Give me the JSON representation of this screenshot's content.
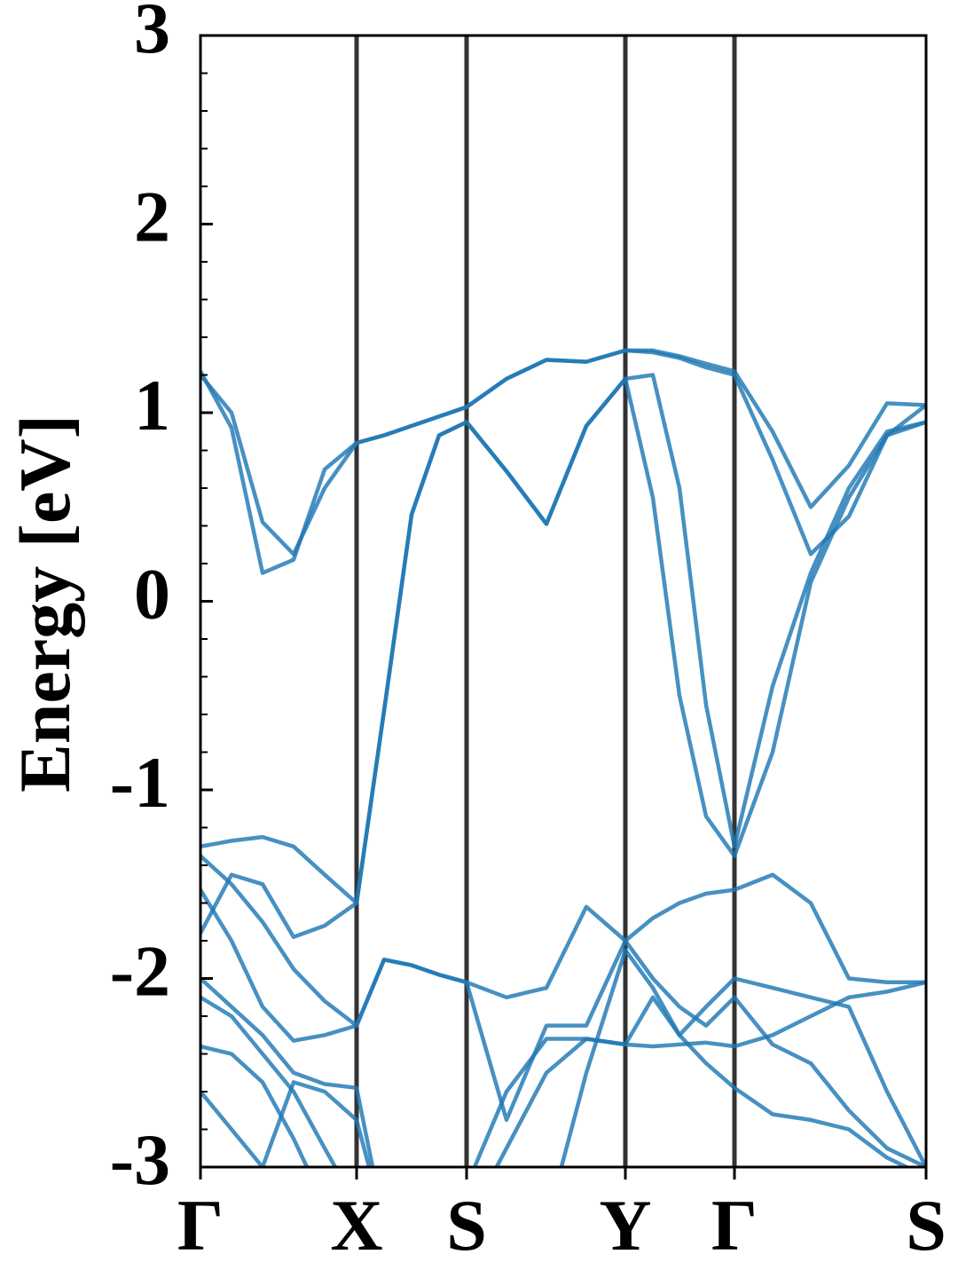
{
  "chart_data": {
    "type": "line",
    "ylabel": "Energy [eV]",
    "x": [
      0,
      0.35,
      0.7,
      1.05,
      1.4,
      1.76,
      2.07,
      2.38,
      2.69,
      3.0,
      3.45,
      3.9,
      4.35,
      4.79,
      5.1,
      5.4,
      5.7,
      6.02,
      6.45,
      6.88,
      7.31,
      7.74,
      8.18
    ],
    "xlim": [
      0,
      8.18
    ],
    "xticks": [
      {
        "value": 0,
        "label": "Γ"
      },
      {
        "value": 1.76,
        "label": "X"
      },
      {
        "value": 3.0,
        "label": "S"
      },
      {
        "value": 4.79,
        "label": "Y"
      },
      {
        "value": 6.02,
        "label": "Γ"
      },
      {
        "value": 8.18,
        "label": "S"
      }
    ],
    "ylim": [
      -3,
      3
    ],
    "yticks": [
      -3,
      -2,
      -1,
      0,
      1,
      2,
      3
    ],
    "yminorticks": [
      -2.8,
      -2.6,
      -2.4,
      -2.2,
      -1.8,
      -1.6,
      -1.4,
      -1.2,
      -0.8,
      -0.6,
      -0.4,
      -0.2,
      0.2,
      0.4,
      0.6,
      0.8,
      1.2,
      1.4,
      1.6,
      1.8,
      2.2,
      2.4,
      2.6,
      2.8
    ],
    "kpoint_lines": true,
    "kpoint_line_color": "#333333",
    "series": [
      {
        "color": "#1f77b4",
        "values": [
          1.22,
          0.92,
          0.15,
          0.22,
          0.7,
          0.84,
          0.88,
          0.93,
          0.98,
          1.03,
          1.18,
          1.28,
          1.27,
          1.33,
          1.33,
          1.3,
          1.26,
          1.22,
          0.9,
          0.5,
          0.72,
          1.05,
          1.04
        ]
      },
      {
        "color": "#1f77b4",
        "values": [
          1.2,
          1.0,
          0.42,
          0.25,
          0.6,
          0.84,
          0.88,
          0.93,
          0.98,
          1.03,
          1.18,
          1.28,
          1.27,
          1.33,
          1.32,
          1.29,
          1.24,
          1.2,
          0.75,
          0.25,
          0.45,
          0.88,
          1.04
        ]
      },
      {
        "color": "#1f77b4",
        "values": [
          -1.3,
          -1.27,
          -1.25,
          -1.3,
          -1.45,
          -1.6,
          -0.58,
          0.46,
          0.88,
          0.95,
          0.69,
          0.41,
          0.93,
          1.18,
          0.55,
          -0.5,
          -1.14,
          -1.35,
          -0.8,
          0.1,
          0.55,
          0.88,
          0.95
        ]
      },
      {
        "color": "#1f77b4",
        "values": [
          -1.76,
          -1.45,
          -1.5,
          -1.78,
          -1.72,
          -1.6,
          -0.58,
          0.46,
          0.88,
          0.95,
          0.69,
          0.41,
          0.93,
          1.18,
          1.2,
          0.6,
          -0.55,
          -1.3,
          -0.45,
          0.15,
          0.6,
          0.9,
          0.95
        ]
      },
      {
        "color": "#1f77b4",
        "values": [
          -1.35,
          -1.5,
          -1.7,
          -1.95,
          -2.12,
          -2.25,
          -1.9,
          -1.93,
          -1.98,
          -2.02,
          -2.1,
          -2.05,
          -1.62,
          -1.8,
          -1.68,
          -1.6,
          -1.55,
          -1.53,
          -1.45,
          -1.6,
          -2.0,
          -2.02,
          -2.02
        ]
      },
      {
        "color": "#1f77b4",
        "values": [
          -1.53,
          -1.8,
          -2.15,
          -2.33,
          -2.3,
          -2.25,
          -1.9,
          -1.93,
          -1.98,
          -2.02,
          -2.75,
          -2.25,
          -2.25,
          -1.8,
          -2.0,
          -2.15,
          -2.25,
          -2.1,
          -2.35,
          -2.45,
          -2.7,
          -2.9,
          -3.0
        ]
      },
      {
        "color": "#1f77b4",
        "values": [
          -2.0,
          -2.15,
          -2.3,
          -2.5,
          -2.56,
          -2.58,
          -3.3,
          -3.5,
          -3.5,
          -3.1,
          -2.6,
          -2.32,
          -2.32,
          -2.35,
          -2.36,
          -2.35,
          -2.34,
          -2.36,
          -2.3,
          -2.2,
          -2.1,
          -2.07,
          -2.02
        ]
      },
      {
        "color": "#1f77b4",
        "values": [
          -2.1,
          -2.2,
          -2.4,
          -2.6,
          -2.9,
          -3.2,
          -3.5,
          -3.5,
          -3.5,
          -3.3,
          -2.9,
          -2.5,
          -2.32,
          -2.35,
          -2.1,
          -2.3,
          -2.15,
          -2.0,
          -2.05,
          -2.1,
          -2.15,
          -2.6,
          -3.0
        ]
      },
      {
        "color": "#1f77b4",
        "values": [
          -2.36,
          -2.4,
          -2.55,
          -2.85,
          -3.2,
          -3.5,
          -3.5,
          -3.5,
          -3.5,
          -3.5,
          -3.5,
          -3.3,
          -2.5,
          -1.85,
          -2.05,
          -2.3,
          -2.45,
          -2.58,
          -2.72,
          -2.75,
          -2.8,
          -2.95,
          -3.05
        ]
      },
      {
        "color": "#1f77b4",
        "values": [
          -2.6,
          -2.8,
          -3.0,
          -2.55,
          -2.6,
          -2.75,
          -3.3,
          -3.5,
          -3.5,
          -3.5,
          -3.5,
          -3.5,
          -3.3,
          -3.1,
          -3.2,
          -3.3,
          -3.4,
          -3.5,
          -3.4,
          -3.3,
          -3.2,
          -3.1,
          -3.0
        ]
      }
    ]
  }
}
